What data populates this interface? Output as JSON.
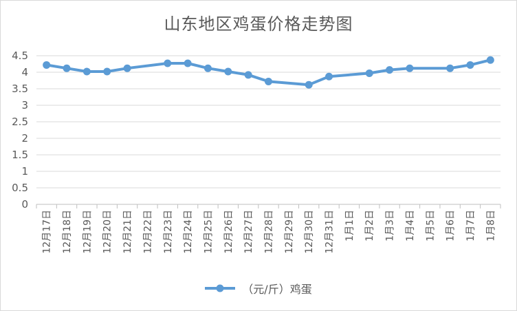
{
  "chart_data": {
    "type": "line",
    "title": "山东地区鸡蛋价格走势图",
    "xlabel": "",
    "ylabel": "",
    "ylim": [
      0,
      4.5
    ],
    "yticks": [
      "0",
      "0.5",
      "1",
      "1.5",
      "2",
      "2.5",
      "3",
      "3.5",
      "4",
      "4.5"
    ],
    "ytick_values": [
      0,
      0.5,
      1,
      1.5,
      2,
      2.5,
      3,
      3.5,
      4,
      4.5
    ],
    "categories": [
      "12月17日",
      "12月18日",
      "12月19日",
      "12月20日",
      "12月21日",
      "12月22日",
      "12月23日",
      "12月24日",
      "12月25日",
      "12月26日",
      "12月27日",
      "12月28日",
      "12月29日",
      "12月30日",
      "12月31日",
      "1月1日",
      "1月2日",
      "1月3日",
      "1月4日",
      "1月5日",
      "1月6日",
      "1月7日",
      "1月8日"
    ],
    "series": [
      {
        "name": "（元/斤）鸡蛋",
        "color": "#5b9bd5",
        "values": [
          4.22,
          4.12,
          4.02,
          4.02,
          4.12,
          null,
          4.27,
          4.27,
          4.12,
          4.02,
          3.92,
          3.72,
          null,
          3.62,
          3.87,
          null,
          3.97,
          4.07,
          4.12,
          null,
          4.12,
          4.22,
          4.37
        ]
      }
    ],
    "grid": true,
    "legend": "bottom"
  }
}
